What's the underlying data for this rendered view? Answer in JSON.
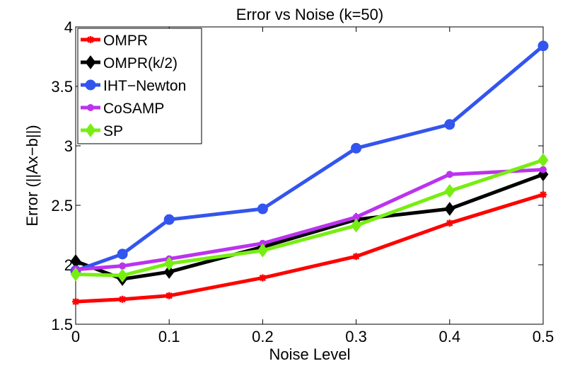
{
  "chart_data": {
    "type": "line",
    "title": "Error vs Noise (k=50)",
    "xlabel": "Noise Level",
    "ylabel": "Error (||Ax−b||)",
    "xlim": [
      0,
      0.5
    ],
    "ylim": [
      1.5,
      4
    ],
    "x": [
      0,
      0.05,
      0.1,
      0.2,
      0.3,
      0.4,
      0.5
    ],
    "xticks": [
      0,
      0.1,
      0.2,
      0.3,
      0.4,
      0.5
    ],
    "xtick_labels": [
      "0",
      "0.1",
      "0.2",
      "0.3",
      "0.4",
      "0.5"
    ],
    "yticks": [
      1.5,
      2,
      2.5,
      3,
      3.5,
      4
    ],
    "ytick_labels": [
      "1.5",
      "2",
      "2.5",
      "3",
      "3.5",
      "4"
    ],
    "legend_position": "top-left",
    "grid": false,
    "series": [
      {
        "name": "OMPR",
        "color": "#ff0000",
        "marker": "star",
        "values": [
          1.69,
          1.71,
          1.74,
          1.89,
          2.07,
          2.35,
          2.59
        ]
      },
      {
        "name": "OMPR(k/2)",
        "color": "#000000",
        "marker": "diamond",
        "values": [
          2.03,
          1.88,
          1.94,
          2.15,
          2.38,
          2.47,
          2.76
        ]
      },
      {
        "name": "IHT−Newton",
        "color": "#3355ee",
        "marker": "circle",
        "values": [
          1.95,
          2.09,
          2.38,
          2.47,
          2.98,
          3.18,
          3.84
        ]
      },
      {
        "name": "CoSAMP",
        "color": "#bb33ee",
        "marker": "dot",
        "values": [
          1.96,
          1.99,
          2.05,
          2.18,
          2.4,
          2.76,
          2.8
        ]
      },
      {
        "name": "SP",
        "color": "#77ee11",
        "marker": "diamond",
        "values": [
          1.92,
          1.91,
          2.01,
          2.12,
          2.33,
          2.62,
          2.88
        ]
      }
    ]
  }
}
